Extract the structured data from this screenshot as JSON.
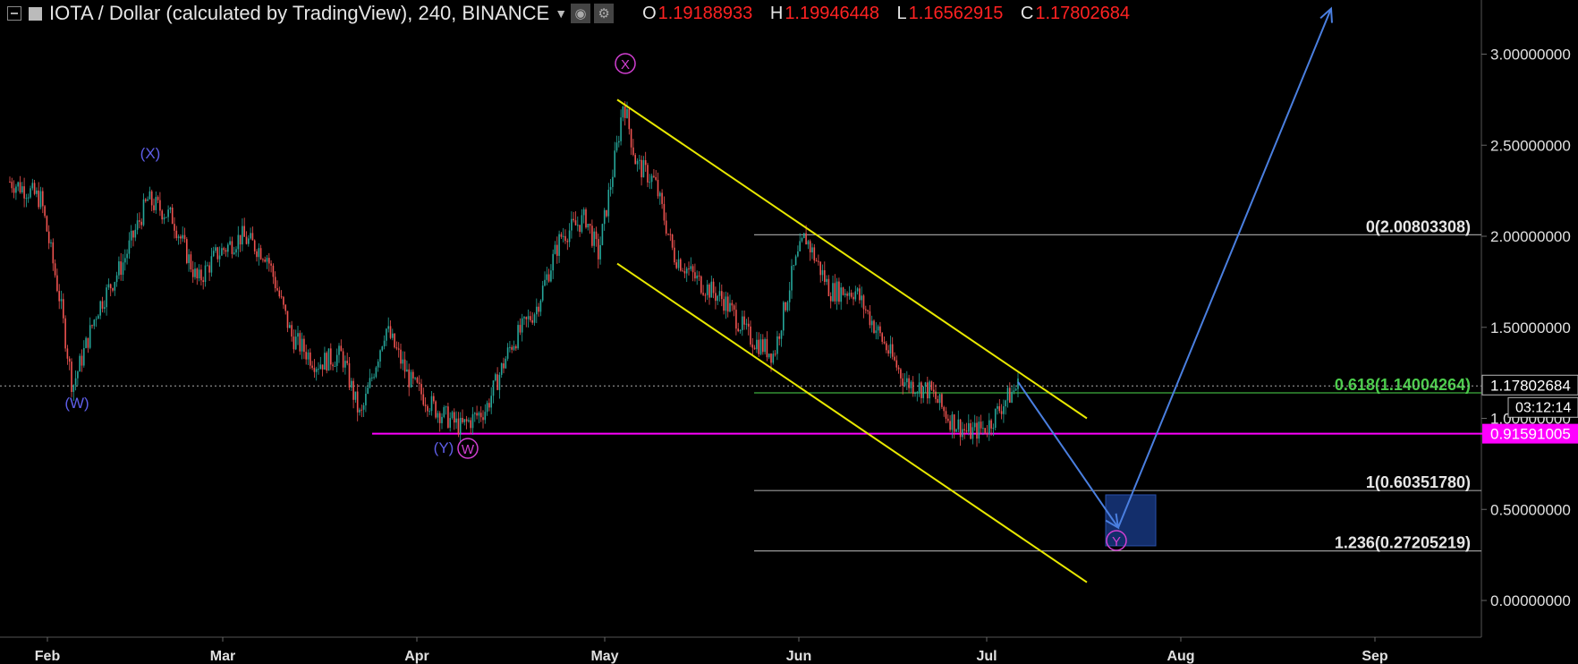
{
  "header": {
    "title": "IOTA / Dollar (calculated by TradingView), 240, BINANCE",
    "ohlc": {
      "o_label": "O",
      "o": "1.19188933",
      "h_label": "H",
      "h": "1.19946448",
      "l_label": "L",
      "l": "1.16562915",
      "c_label": "C",
      "c": "1.17802684"
    },
    "icons": [
      "collapse-icon",
      "symbol-icon",
      "caret-down-icon",
      "eye-icon",
      "gear-icon"
    ]
  },
  "chart_data": {
    "type": "candlestick",
    "ylim": [
      -0.2,
      3.3
    ],
    "x_ticks": [
      "Feb",
      "Mar",
      "Apr",
      "May",
      "Jun",
      "Jul",
      "Aug",
      "Sep"
    ],
    "y_ticks": [
      "0.00000000",
      "0.50000000",
      "1.00000000",
      "1.50000000",
      "2.00000000",
      "2.50000000",
      "3.00000000"
    ],
    "y_tick_values": [
      0,
      0.5,
      1.0,
      1.5,
      2.0,
      2.5,
      3.0
    ],
    "last_price": "1.17802684",
    "countdown": "03:12:14",
    "support_price": "0.91591005",
    "fib_levels": [
      {
        "label": "0(2.00803308)",
        "value": 2.00803308,
        "color": "#9a9a9a"
      },
      {
        "label": "0.618(1.14004264)",
        "value": 1.14004264,
        "color": "#3fae3f"
      },
      {
        "label": "1(0.60351780)",
        "value": 0.6035178,
        "color": "#9a9a9a"
      },
      {
        "label": "1.236(0.27205219)",
        "value": 0.27205219,
        "color": "#9a9a9a"
      }
    ],
    "wave_labels": [
      {
        "text": "(W)",
        "color": "#5e5ee8",
        "circled": false
      },
      {
        "text": "(X)",
        "color": "#5e5ee8",
        "circled": false
      },
      {
        "text": "(Y)",
        "color": "#5e5ee8",
        "circled": false
      },
      {
        "text": "W",
        "color": "#d23fd2",
        "circled": true
      },
      {
        "text": "X",
        "color": "#d23fd2",
        "circled": true
      },
      {
        "text": "Y",
        "color": "#d23fd2",
        "circled": true
      }
    ],
    "price_path": [
      [
        "Jan 26",
        2.3
      ],
      [
        "Jan 29",
        2.25
      ],
      [
        "Jan 31",
        2.2
      ],
      [
        "Feb 3",
        1.65
      ],
      [
        "Feb 5",
        1.17
      ],
      [
        "Feb 9",
        1.6
      ],
      [
        "Feb 13",
        1.85
      ],
      [
        "Feb 17",
        2.2
      ],
      [
        "Feb 21",
        2.1
      ],
      [
        "Feb 25",
        1.75
      ],
      [
        "Feb 28",
        1.9
      ],
      [
        "Mar 4",
        2.0
      ],
      [
        "Mar 8",
        1.9
      ],
      [
        "Mar 12",
        1.45
      ],
      [
        "Mar 16",
        1.3
      ],
      [
        "Mar 20",
        1.35
      ],
      [
        "Mar 23",
        1.0
      ],
      [
        "Mar 27",
        1.5
      ],
      [
        "Mar 31",
        1.2
      ],
      [
        "Apr 4",
        1.05
      ],
      [
        "Apr 8",
        0.95
      ],
      [
        "Apr 12",
        1.05
      ],
      [
        "Apr 16",
        1.4
      ],
      [
        "Apr 20",
        1.6
      ],
      [
        "Apr 24",
        2.0
      ],
      [
        "Apr 28",
        2.1
      ],
      [
        "Apr 30",
        1.9
      ],
      [
        "May 3",
        2.5
      ],
      [
        "May 4",
        2.75
      ],
      [
        "May 6",
        2.4
      ],
      [
        "May 9",
        2.3
      ],
      [
        "May 12",
        1.9
      ],
      [
        "May 16",
        1.75
      ],
      [
        "May 20",
        1.65
      ],
      [
        "May 24",
        1.45
      ],
      [
        "May 28",
        1.35
      ],
      [
        "May 31",
        1.8
      ],
      [
        "Jun 2",
        2.0
      ],
      [
        "Jun 6",
        1.7
      ],
      [
        "Jun 10",
        1.7
      ],
      [
        "Jun 14",
        1.45
      ],
      [
        "Jun 18",
        1.2
      ],
      [
        "Jun 22",
        1.15
      ],
      [
        "Jun 25",
        1.0
      ],
      [
        "Jun 28",
        0.92
      ],
      [
        "Jul 1",
        0.95
      ],
      [
        "Jul 4",
        1.1
      ],
      [
        "Jul 6",
        1.18
      ]
    ],
    "channel": {
      "upper": [
        [
          "May 3",
          2.75
        ],
        [
          "Jul 17",
          1.0
        ]
      ],
      "lower": [
        [
          "May 3",
          1.85
        ],
        [
          "Jul 17",
          0.1
        ]
      ]
    },
    "projection": [
      [
        "Jul 6",
        1.2
      ],
      [
        "Jul 22",
        0.4
      ],
      [
        "Aug 25",
        3.25
      ]
    ],
    "target_zone": {
      "x": [
        "Jul 20",
        "Jul 28"
      ],
      "y": [
        0.3,
        0.58
      ]
    },
    "colors": {
      "bull": "#26a69a",
      "bear": "#ef5350",
      "channel": "#e8e800",
      "projection": "#4a7fe0",
      "support": "#ff00ff",
      "zone": "#132e6b"
    }
  }
}
